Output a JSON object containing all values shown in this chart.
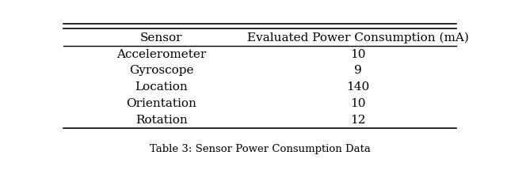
{
  "col_headers": [
    "Sensor",
    "Evaluated Power Consumption (mA)"
  ],
  "rows": [
    [
      "Accelerometer",
      "10"
    ],
    [
      "Gyroscope",
      "9"
    ],
    [
      "Location",
      "140"
    ],
    [
      "Orientation",
      "10"
    ],
    [
      "Rotation",
      "12"
    ]
  ],
  "caption": "Table 3: Sensor Power Consumption Data",
  "bg_color": "#ffffff",
  "text_color": "#000000",
  "figsize": [
    6.4,
    2.25
  ],
  "dpi": 100
}
